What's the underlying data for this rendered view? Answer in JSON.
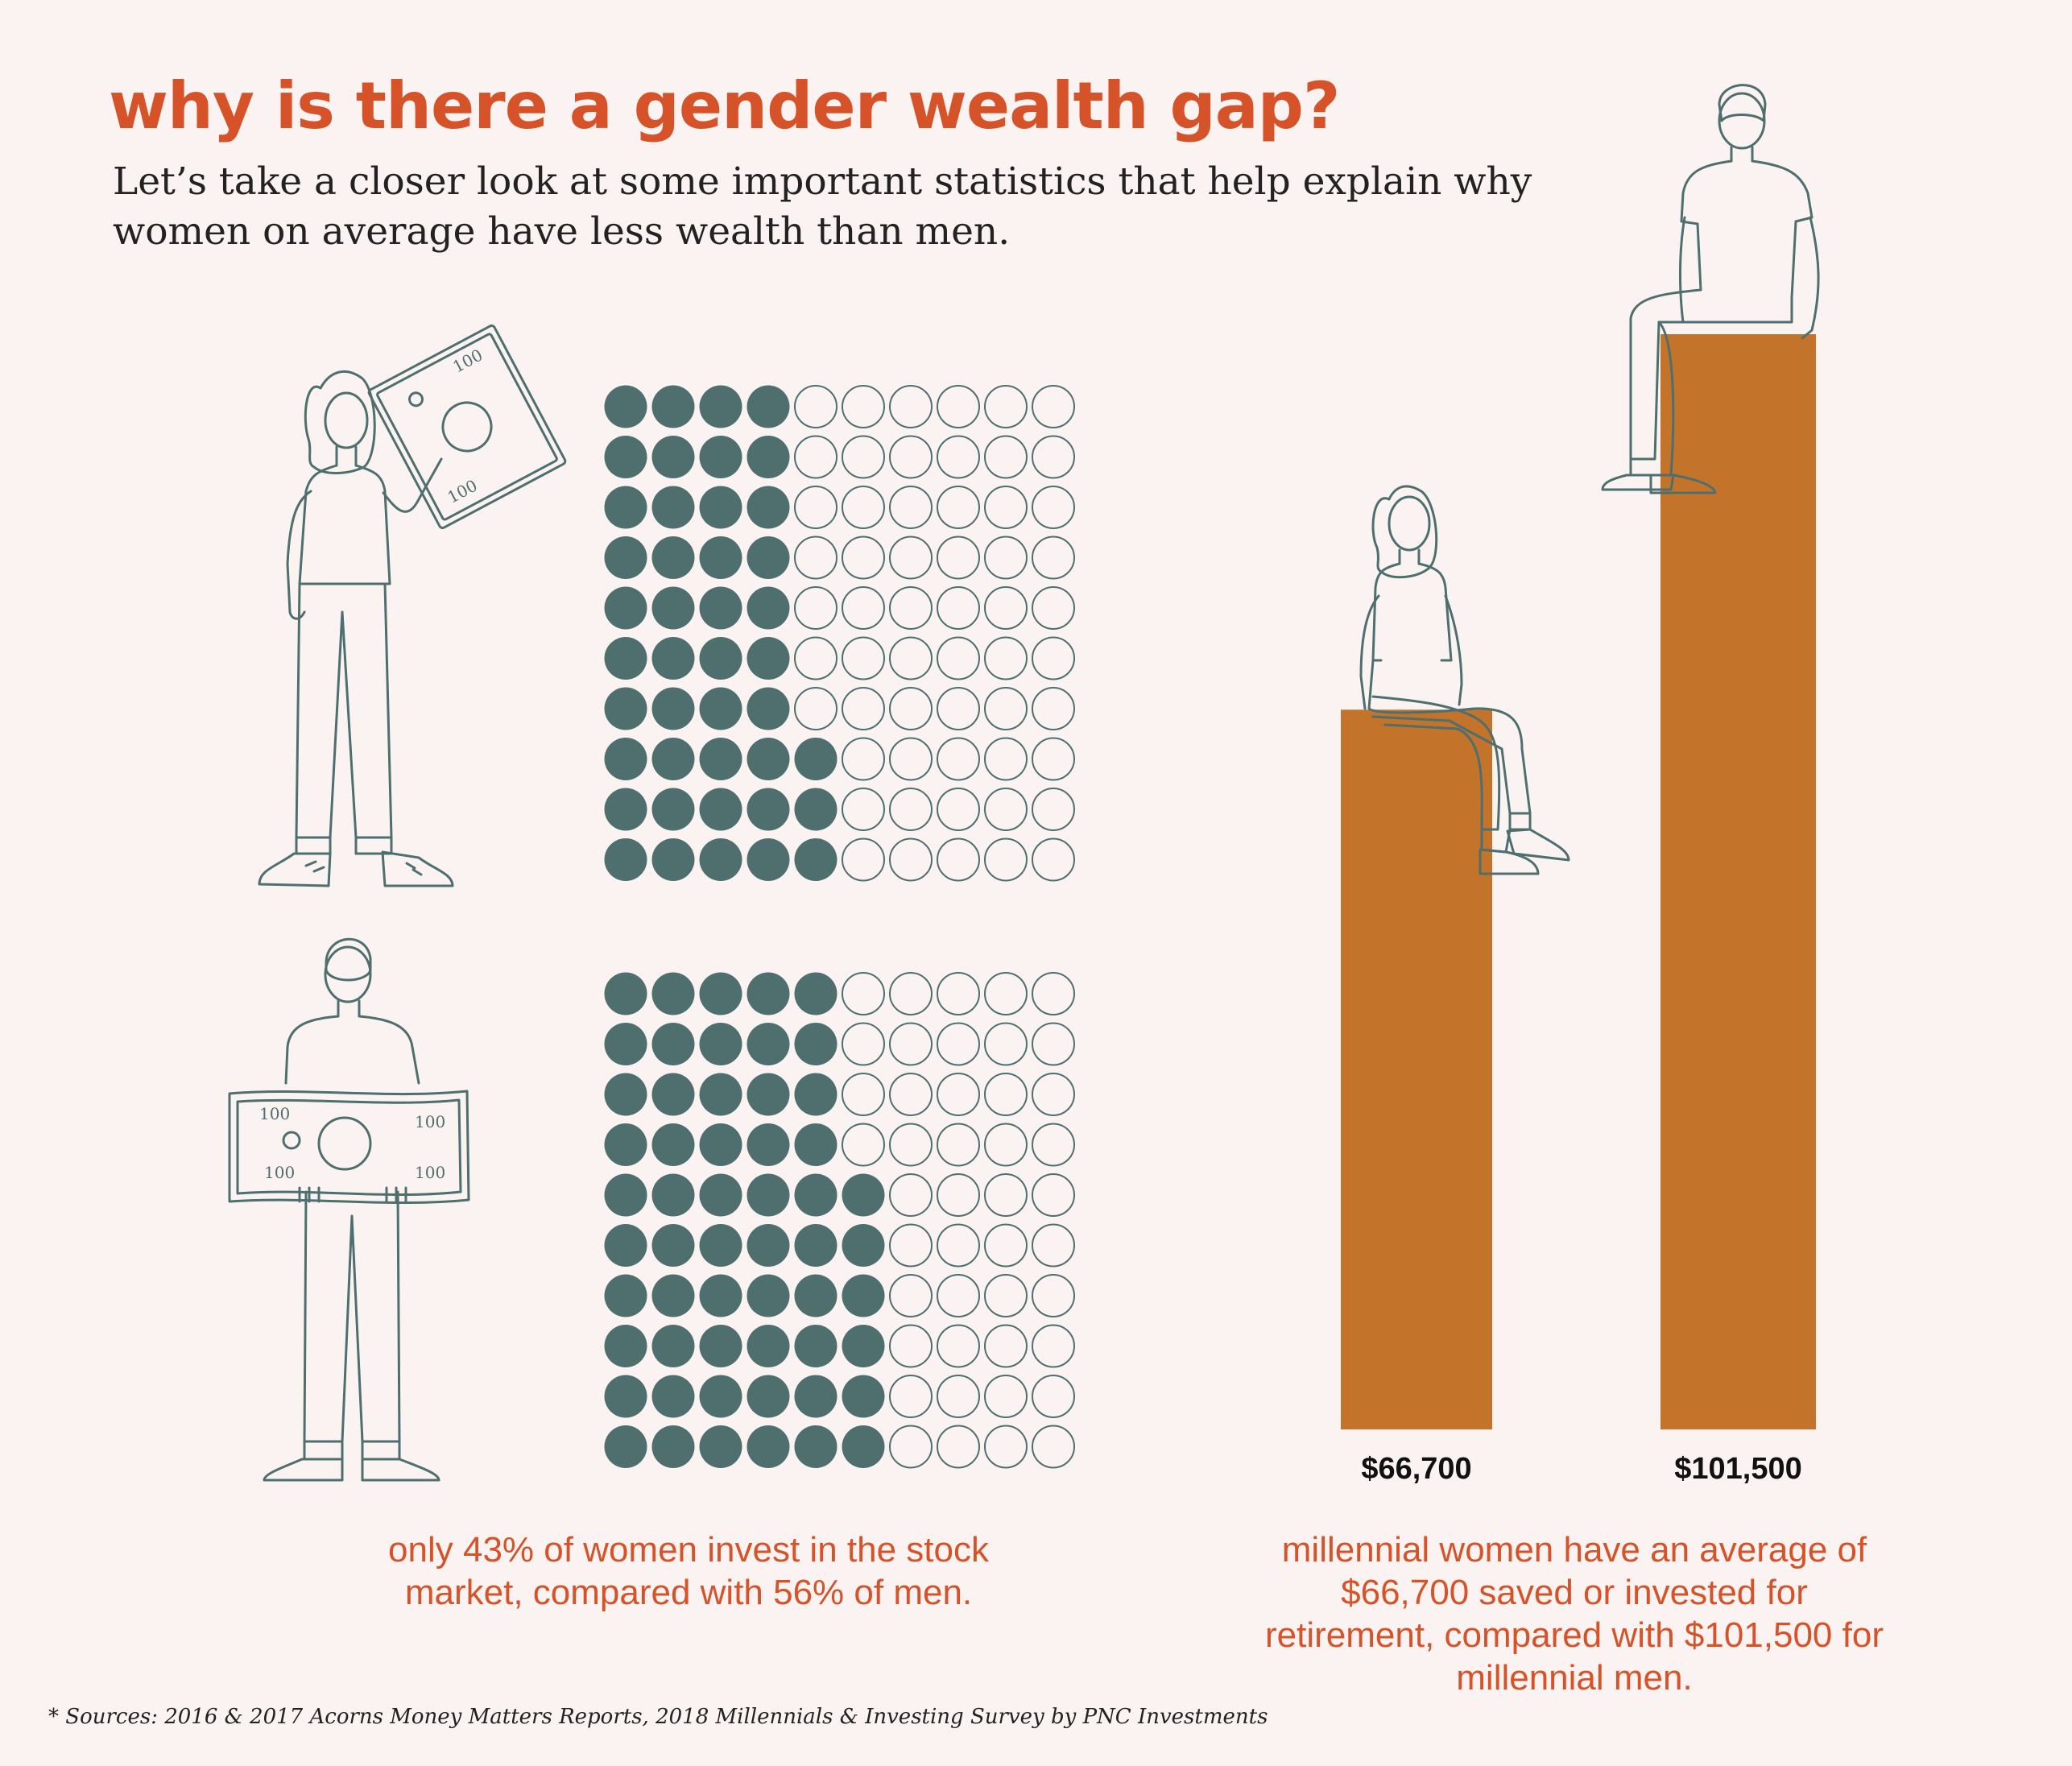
{
  "header": {
    "title": "why is there a gender wealth gap?",
    "subtitle": "Let’s take a closer look at some important statistics that help explain why women on average have less wealth than men."
  },
  "colors": {
    "background": "#fbf3f2",
    "accent": "#d6532a",
    "dot_filled": "#4e6f6e",
    "bar": "#c4732a"
  },
  "icons": [
    "woman-holding-bill-icon",
    "man-holding-bill-icon",
    "woman-sitting-icon",
    "man-sitting-icon"
  ],
  "bill_denomination": "100",
  "chart_data": [
    {
      "type": "waffle",
      "grid": [
        10,
        10
      ],
      "series": [
        {
          "name": "women",
          "value": 43
        },
        {
          "name": "men",
          "value": 56
        }
      ],
      "caption": "only 43% of women invest in the stock market, compared with 56% of men."
    },
    {
      "type": "bar",
      "categories": [
        "millennial women",
        "millennial men"
      ],
      "values": [
        66700,
        101500
      ],
      "value_labels": [
        "$66,700",
        "$101,500"
      ],
      "caption": "millennial women have an average of $66,700 saved or invested for retirement, compared with $101,500 for millennial men."
    }
  ],
  "footnote": "* Sources: 2016 & 2017 Acorns Money Matters Reports, 2018 Millennials & Investing Survey by PNC Investments"
}
